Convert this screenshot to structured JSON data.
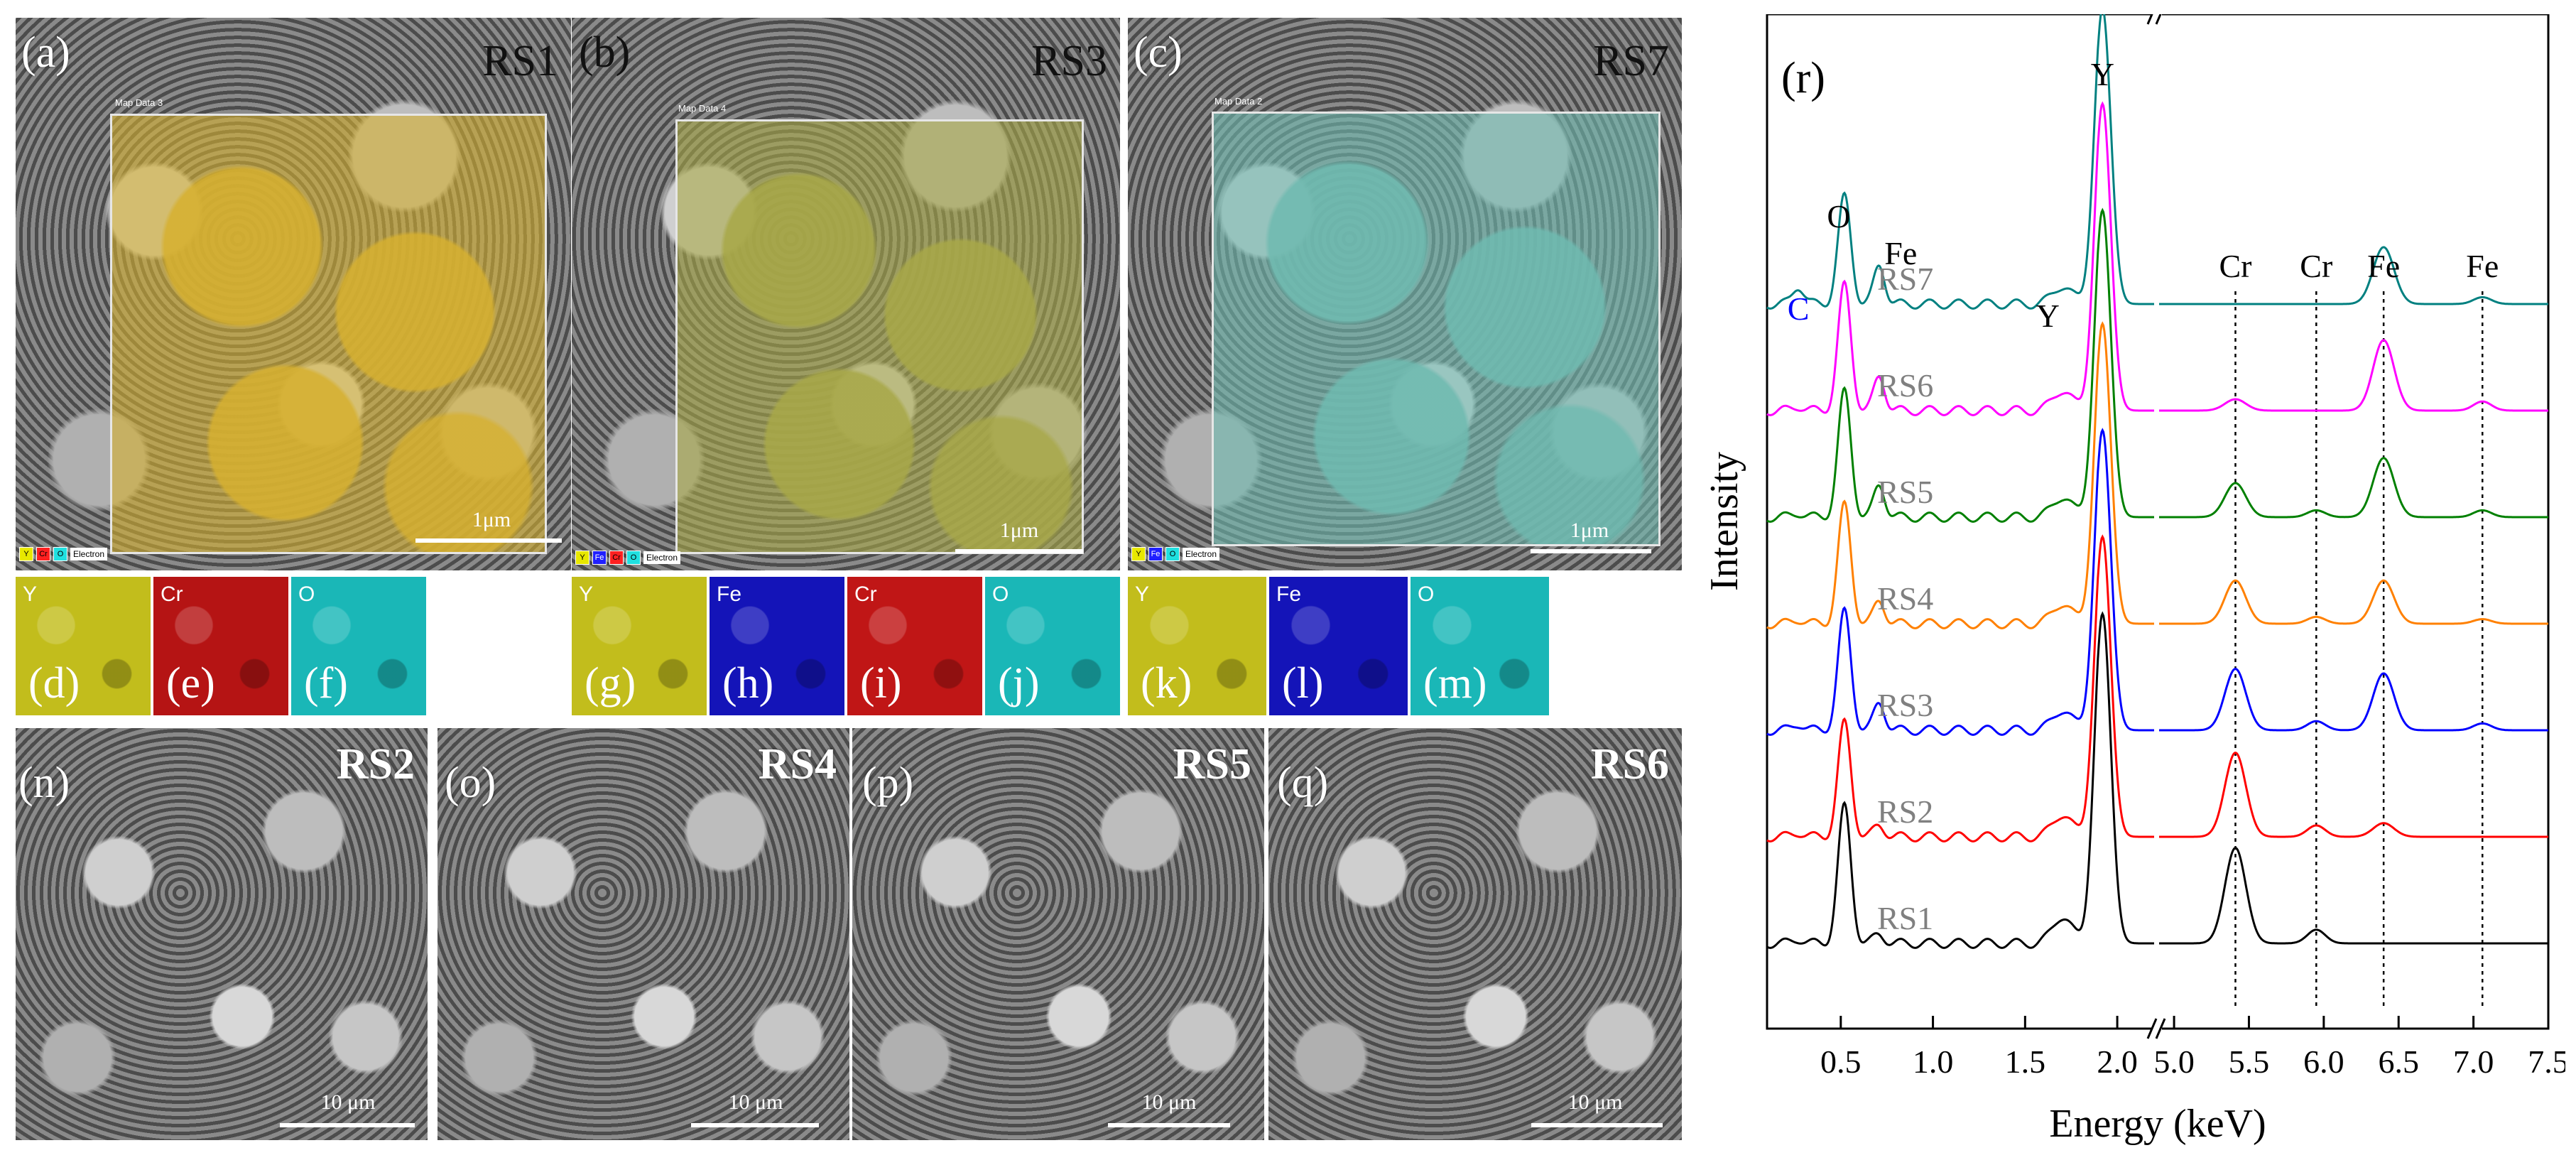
{
  "colors": {
    "yttrium": "#c8c030",
    "chromium": "#d01818",
    "iron": "#1a1ad0",
    "oxygen": "#20c8c8",
    "spectra": {
      "RS1": "#000000",
      "RS2": "#ff0000",
      "RS3": "#0000ff",
      "RS4": "#ff8000",
      "RS5": "#008000",
      "RS6": "#ff00ff",
      "RS7": "#008080"
    }
  },
  "icons": {
    "legend_swatch": "square-swatch-icon"
  },
  "map_panels": [
    {
      "tag": "(a)",
      "sample": "RS1",
      "map_title": "Map Data 3",
      "scale": "1μm",
      "legend": [
        {
          "key": "Y",
          "color": "#e8e800"
        },
        {
          "key": "Cr",
          "color": "#ff2020"
        },
        {
          "key": "O",
          "color": "#20e0e0"
        }
      ],
      "legend_text": "Electron",
      "overlay_color": "#d6b030"
    },
    {
      "tag": "(b)",
      "sample": "RS3",
      "map_title": "Map Data 4",
      "scale": "1μm",
      "legend": [
        {
          "key": "Y",
          "color": "#e8e800"
        },
        {
          "key": "Fe",
          "color": "#2020ff"
        },
        {
          "key": "Cr",
          "color": "#ff2020"
        },
        {
          "key": "O",
          "color": "#20e0e0"
        }
      ],
      "legend_text": "Electron",
      "overlay_color": "#a8a848"
    },
    {
      "tag": "(c)",
      "sample": "RS7",
      "map_title": "Map Data 2",
      "scale": "1μm",
      "legend": [
        {
          "key": "Y",
          "color": "#e8e800"
        },
        {
          "key": "Fe",
          "color": "#2020ff"
        },
        {
          "key": "O",
          "color": "#20e0e0"
        }
      ],
      "legend_text": "Electron",
      "overlay_color": "#6fbab0"
    }
  ],
  "element_maps": [
    {
      "tag": "(d)",
      "element": "Y",
      "color": "#c2bd1c"
    },
    {
      "tag": "(e)",
      "element": "Cr",
      "color": "#b51414"
    },
    {
      "tag": "(f)",
      "element": "O",
      "color": "#1ab7b7"
    },
    {
      "tag": "(g)",
      "element": "Y",
      "color": "#c2bd1c"
    },
    {
      "tag": "(h)",
      "element": "Fe",
      "color": "#1414b8"
    },
    {
      "tag": "(i)",
      "element": "Cr",
      "color": "#c01616"
    },
    {
      "tag": "(j)",
      "element": "O",
      "color": "#1ab7b7"
    },
    {
      "tag": "(k)",
      "element": "Y",
      "color": "#c2bd1c"
    },
    {
      "tag": "(l)",
      "element": "Fe",
      "color": "#1414b8"
    },
    {
      "tag": "(m)",
      "element": "O",
      "color": "#1ab7b7"
    }
  ],
  "sem_panels": [
    {
      "tag": "(n)",
      "sample": "RS2",
      "scale": "10 μm"
    },
    {
      "tag": "(o)",
      "sample": "RS4",
      "scale": "10 μm"
    },
    {
      "tag": "(p)",
      "sample": "RS5",
      "scale": "10 μm"
    },
    {
      "tag": "(q)",
      "sample": "RS6",
      "scale": "10 μm"
    }
  ],
  "chart_data": {
    "type": "line",
    "panel_tag": "(r)",
    "xlabel": "Energy (keV)",
    "ylabel": "Intensity",
    "x_axis_break": [
      2.2,
      4.9
    ],
    "x_segments": [
      {
        "range": [
          0.1,
          2.2
        ]
      },
      {
        "range": [
          4.9,
          7.5
        ]
      }
    ],
    "x_ticks": [
      0.5,
      1.0,
      1.5,
      2.0,
      5.0,
      5.5,
      6.0,
      6.5,
      7.0,
      7.5
    ],
    "x_tick_labels": [
      "0.5",
      "1.0",
      "1.5",
      "2.0",
      "5.0",
      "5.5",
      "6.0",
      "6.5",
      "7.0",
      "7.5"
    ],
    "x_tick_labels_clipped": {
      "2.0": "2.0",
      "5.0": ":5.0"
    },
    "series_order_bottom_to_top": [
      "RS1",
      "RS2",
      "RS3",
      "RS4",
      "RS5",
      "RS6",
      "RS7"
    ],
    "peak_labels": [
      {
        "text": "C",
        "x": 0.27,
        "color": "#0000ff"
      },
      {
        "text": "O",
        "x": 0.52
      },
      {
        "text": "Fe",
        "x": 0.71
      },
      {
        "text": "Y",
        "x": 1.7
      },
      {
        "text": "Y",
        "x": 1.92
      },
      {
        "text": "Cr",
        "x": 5.41
      },
      {
        "text": "Cr",
        "x": 5.95
      },
      {
        "text": "Fe",
        "x": 6.4
      },
      {
        "text": "Fe",
        "x": 7.06
      }
    ],
    "reference_lines": [
      5.41,
      5.95,
      6.4,
      7.06
    ],
    "series": [
      {
        "name": "RS1",
        "peaks": {
          "C": 0.02,
          "O": 0.6,
          "Fe_L": 0.04,
          "Y_L2": 0.12,
          "Y": 1.45,
          "Cr_Ka": 0.42,
          "Cr_Kb": 0.06,
          "Fe_Ka": 0.0,
          "Fe_Kb": 0.0
        }
      },
      {
        "name": "RS2",
        "peaks": {
          "C": 0.02,
          "O": 0.5,
          "Fe_L": 0.05,
          "Y_L2": 0.1,
          "Y": 1.32,
          "Cr_Ka": 0.37,
          "Cr_Kb": 0.05,
          "Fe_Ka": 0.06,
          "Fe_Kb": 0.0
        }
      },
      {
        "name": "RS3",
        "peaks": {
          "C": 0.03,
          "O": 0.52,
          "Fe_L": 0.12,
          "Y_L2": 0.09,
          "Y": 1.32,
          "Cr_Ka": 0.27,
          "Cr_Kb": 0.04,
          "Fe_Ka": 0.25,
          "Fe_Kb": 0.03
        }
      },
      {
        "name": "RS4",
        "peaks": {
          "C": 0.02,
          "O": 0.52,
          "Fe_L": 0.1,
          "Y_L2": 0.09,
          "Y": 1.32,
          "Cr_Ka": 0.19,
          "Cr_Kb": 0.03,
          "Fe_Ka": 0.19,
          "Fe_Kb": 0.02
        }
      },
      {
        "name": "RS5",
        "peaks": {
          "C": 0.02,
          "O": 0.55,
          "Fe_L": 0.14,
          "Y_L2": 0.09,
          "Y": 1.35,
          "Cr_Ka": 0.15,
          "Cr_Kb": 0.03,
          "Fe_Ka": 0.26,
          "Fe_Kb": 0.03
        }
      },
      {
        "name": "RS6",
        "peaks": {
          "C": 0.02,
          "O": 0.55,
          "Fe_L": 0.15,
          "Y_L2": 0.09,
          "Y": 1.35,
          "Cr_Ka": 0.05,
          "Cr_Kb": 0.0,
          "Fe_Ka": 0.31,
          "Fe_Kb": 0.04
        }
      },
      {
        "name": "RS7",
        "peaks": {
          "C": 0.08,
          "O": 0.47,
          "Fe_L": 0.17,
          "Y_L2": 0.08,
          "Y": 1.3,
          "Cr_Ka": 0.0,
          "Cr_Kb": 0.0,
          "Fe_Ka": 0.25,
          "Fe_Kb": 0.03
        }
      }
    ]
  }
}
